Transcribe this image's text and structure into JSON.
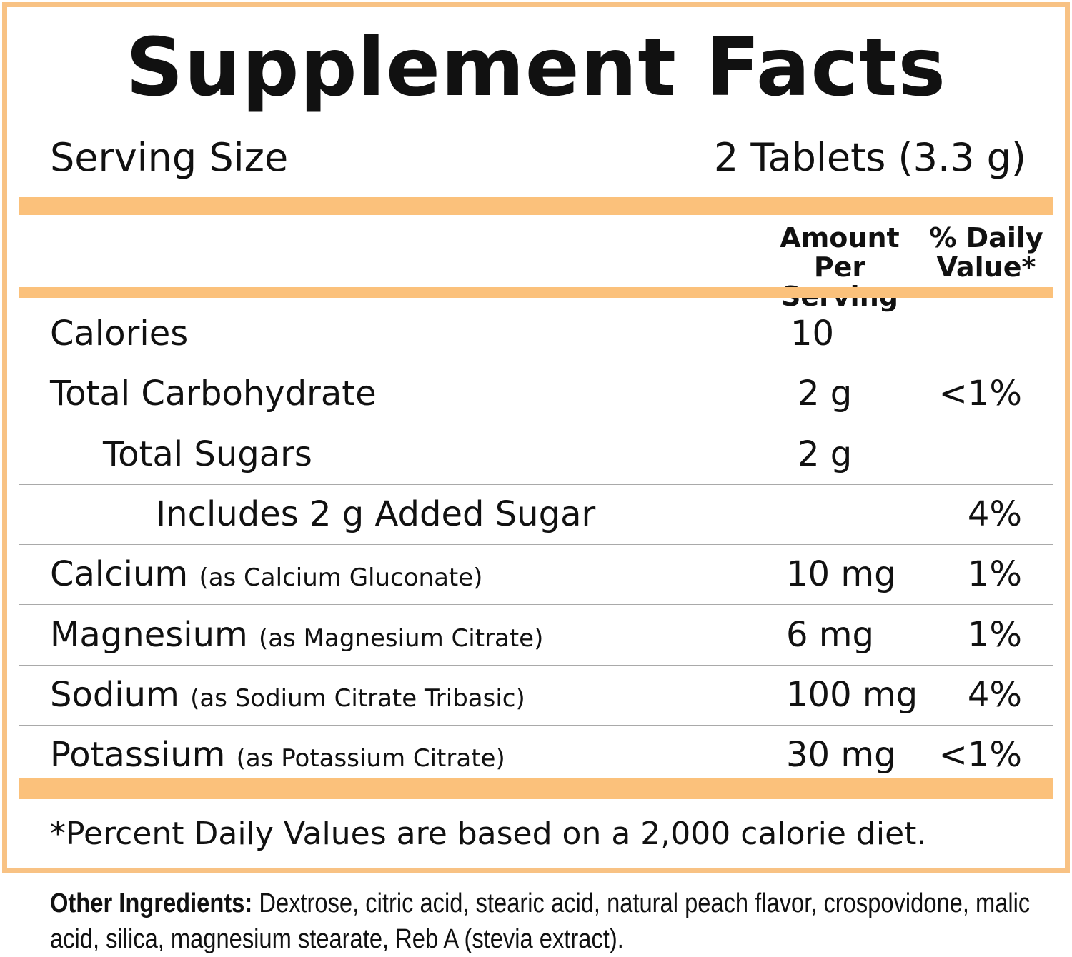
{
  "title": "Supplement Facts",
  "serving": {
    "label": "Serving Size",
    "value": "2 Tablets (3.3 g)"
  },
  "columns": {
    "amount_line1": "Amount",
    "amount_line2": "Per Serving",
    "dv_line1": "% Daily",
    "dv_line2": "Value*"
  },
  "rows": [
    {
      "name": "Calories",
      "source": "",
      "amount": "10",
      "dv": ""
    },
    {
      "name": "Total Carbohydrate",
      "source": "",
      "amount": "2 g",
      "dv": "<1%"
    },
    {
      "name": "Total Sugars",
      "source": "",
      "amount": "2 g",
      "dv": ""
    },
    {
      "name": "Includes 2 g Added Sugar",
      "source": "",
      "amount": "",
      "dv": "4%"
    },
    {
      "name": "Calcium",
      "source": "(as Calcium Gluconate)",
      "amount": "10 mg",
      "dv": "1%"
    },
    {
      "name": "Magnesium",
      "source": "(as Magnesium Citrate)",
      "amount": "6 mg",
      "dv": "1%"
    },
    {
      "name": "Sodium",
      "source": "(as Sodium Citrate Tribasic)",
      "amount": "100 mg",
      "dv": "4%"
    },
    {
      "name": "Potassium",
      "source": "(as Potassium Citrate)",
      "amount": "30 mg",
      "dv": "<1%"
    }
  ],
  "footnote": "*Percent Daily Values are based on a 2,000 calorie diet.",
  "other_ingredients": {
    "label": "Other Ingredients:",
    "text": " Dextrose, citric acid, stearic acid, natural peach flavor, crospovidone, malic acid, silica, magnesium stearate, Reb A (stevia extract)."
  },
  "colors": {
    "accent": "#fbc17b",
    "divider": "#a9a9a9",
    "text": "#111111"
  }
}
